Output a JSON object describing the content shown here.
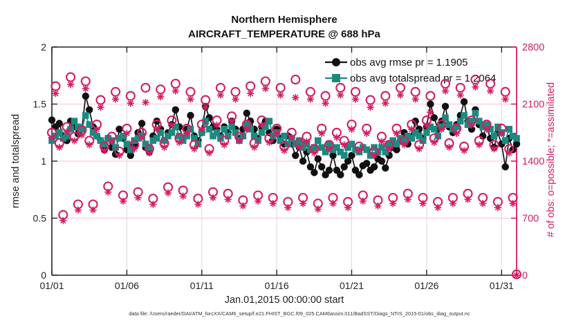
{
  "title": {
    "line1": "Northern Hemisphere",
    "line2": "AIRCRAFT_TEMPERATURE @ 688 hPa"
  },
  "xlabel": "Jan.01,2015 00:00:00 start",
  "ylabel_left": "rmse and totalspread",
  "ylabel_right": "# of obs: o=possible; *=assimilated",
  "caption": "data file: /Users/raeder/DAI/ATM_forcXX/CAM6_setup/f.e21.FHIST_BGC.f09_025.CAM6assim.011/BadSST/Diags_NTrS_2015-01/obs_diag_output.nc",
  "legend": [
    {
      "label": "obs avg rmse pr = 1.1905"
    },
    {
      "label": "obs avg totalspread pr = 1.2064"
    }
  ],
  "colors": {
    "rmse": "#111111",
    "totalspread": "#1b8a80",
    "counts": "#d21e64",
    "grid_h": "#f4cfdc",
    "grid_v": "#d9d9d9",
    "axis": "#222222"
  },
  "chart_data": {
    "type": "line",
    "title": "Northern Hemisphere AIRCRAFT_TEMPERATURE @ 688 hPa",
    "x_axis": {
      "start": "01/01",
      "end": "02/01",
      "points_per_day": 4,
      "tick_labels": [
        "01/01",
        "01/06",
        "01/11",
        "01/16",
        "01/21",
        "01/26",
        "01/31"
      ]
    },
    "y_left": {
      "label": "rmse and totalspread",
      "range": [
        0,
        2
      ],
      "ticks": [
        0,
        0.5,
        1,
        1.5,
        2
      ],
      "tick_labels": [
        "0",
        "0.5",
        "1",
        "1.5",
        "2"
      ]
    },
    "y_right": {
      "label": "# of obs: o=possible; *=assimilated",
      "range": [
        0,
        2800
      ],
      "ticks": [
        0,
        700,
        1400,
        2100,
        2800
      ],
      "tick_labels": [
        "0",
        "700",
        "1400",
        "2100",
        "2800"
      ]
    },
    "grid": true,
    "legend_position": "top-right-inside",
    "series": [
      {
        "name": "obs avg rmse pr = 1.1905",
        "axis": "left",
        "style": "line+filled-circle",
        "values": [
          1.36,
          1.3,
          1.33,
          1.22,
          1.18,
          1.35,
          1.3,
          1.24,
          1.28,
          1.57,
          1.45,
          1.3,
          1.22,
          1.18,
          1.1,
          1.2,
          1.12,
          1.06,
          1.28,
          1.2,
          1.1,
          1.05,
          1.14,
          1.25,
          1.33,
          1.12,
          1.08,
          1.22,
          1.35,
          1.28,
          1.18,
          1.25,
          1.32,
          1.45,
          1.3,
          1.2,
          1.28,
          1.4,
          1.22,
          1.18,
          1.25,
          1.48,
          1.38,
          1.3,
          1.28,
          1.22,
          1.3,
          1.25,
          1.35,
          1.28,
          1.2,
          1.28,
          1.42,
          1.35,
          1.28,
          1.2,
          1.3,
          1.35,
          1.25,
          1.18,
          1.28,
          1.2,
          1.15,
          1.22,
          1.15,
          1.05,
          1.12,
          1.0,
          1.08,
          0.95,
          0.9,
          1.02,
          0.95,
          0.88,
          0.92,
          1.05,
          0.92,
          0.88,
          0.95,
          1.0,
          1.05,
          0.92,
          0.88,
          0.96,
          0.98,
          0.92,
          0.95,
          1.02,
          1.0,
          0.94,
          1.05,
          1.12,
          1.1,
          1.18,
          1.25,
          1.15,
          1.22,
          1.35,
          1.28,
          1.2,
          1.3,
          1.5,
          1.38,
          1.28,
          1.35,
          1.48,
          1.3,
          1.25,
          1.32,
          1.4,
          1.52,
          1.35,
          1.28,
          1.45,
          1.32,
          1.22,
          1.3,
          1.2,
          1.12,
          1.25,
          1.15,
          0.95,
          1.2,
          1.1,
          1.15
        ]
      },
      {
        "name": "obs avg totalspread pr = 1.2064",
        "axis": "left",
        "style": "line+filled-square",
        "values": [
          1.18,
          1.22,
          1.25,
          1.2,
          1.22,
          1.28,
          1.35,
          1.3,
          1.28,
          1.4,
          1.32,
          1.25,
          1.22,
          1.18,
          1.15,
          1.2,
          1.18,
          1.12,
          1.2,
          1.22,
          1.15,
          1.1,
          1.18,
          1.2,
          1.22,
          1.15,
          1.12,
          1.18,
          1.2,
          1.25,
          1.18,
          1.22,
          1.25,
          1.3,
          1.22,
          1.18,
          1.22,
          1.28,
          1.2,
          1.15,
          1.25,
          1.35,
          1.28,
          1.22,
          1.25,
          1.2,
          1.28,
          1.22,
          1.3,
          1.25,
          1.18,
          1.22,
          1.32,
          1.28,
          1.22,
          1.18,
          1.25,
          1.3,
          1.35,
          1.22,
          1.25,
          1.18,
          1.22,
          1.15,
          1.2,
          1.15,
          1.18,
          1.12,
          1.15,
          1.1,
          1.12,
          1.18,
          1.12,
          1.08,
          1.15,
          1.1,
          1.12,
          1.08,
          1.05,
          1.12,
          1.15,
          1.1,
          1.08,
          1.12,
          1.1,
          1.05,
          1.12,
          1.08,
          1.12,
          1.08,
          1.15,
          1.18,
          1.15,
          1.2,
          1.18,
          1.22,
          1.2,
          1.25,
          1.22,
          1.18,
          1.25,
          1.3,
          1.28,
          1.22,
          1.3,
          1.38,
          1.32,
          1.28,
          1.3,
          1.35,
          1.4,
          1.32,
          1.35,
          1.42,
          1.35,
          1.3,
          1.32,
          1.28,
          1.22,
          1.3,
          1.25,
          1.18,
          1.28,
          1.22,
          1.2
        ]
      },
      {
        "name": "# of obs possible (o)",
        "axis": "right",
        "style": "open-circle",
        "values": [
          1750,
          2320,
          1620,
          740,
          1820,
          2430,
          1700,
          870,
          1780,
          2380,
          1650,
          870,
          1850,
          2150,
          1580,
          1090,
          1700,
          2250,
          1520,
          980,
          1800,
          2200,
          1600,
          1020,
          1750,
          2300,
          1550,
          940,
          1850,
          2280,
          1620,
          1080,
          1900,
          2350,
          1680,
          1040,
          1800,
          2250,
          1600,
          940,
          1850,
          2150,
          1550,
          1020,
          1900,
          2300,
          1650,
          1000,
          1950,
          2250,
          1700,
          920,
          1850,
          2320,
          1620,
          980,
          1900,
          2380,
          1680,
          950,
          1800,
          2300,
          1580,
          900,
          1750,
          2400,
          1620,
          950,
          1700,
          2250,
          1550,
          880,
          1800,
          2200,
          1600,
          950,
          1750,
          2300,
          1650,
          900,
          1850,
          2250,
          1580,
          980,
          1800,
          2150,
          1520,
          920,
          1700,
          2200,
          1600,
          950,
          1800,
          2300,
          1650,
          1000,
          1850,
          2250,
          1600,
          950,
          1900,
          2200,
          1680,
          900,
          1850,
          2350,
          1620,
          950,
          1800,
          2300,
          1580,
          1000,
          1900,
          2400,
          1650,
          950,
          1850,
          2350,
          1600,
          900,
          1800,
          2250,
          1550,
          950,
          10
        ]
      },
      {
        "name": "# of obs assimilated (*)",
        "axis": "right",
        "style": "asterisk",
        "values": [
          1690,
          2230,
          1570,
          670,
          1760,
          2340,
          1650,
          800,
          1720,
          2290,
          1600,
          800,
          1790,
          2060,
          1530,
          1020,
          1640,
          2160,
          1470,
          910,
          1740,
          2110,
          1550,
          950,
          1690,
          2120,
          1500,
          870,
          1790,
          2190,
          1570,
          1010,
          1840,
          2260,
          1630,
          970,
          1740,
          2160,
          1550,
          870,
          1790,
          2060,
          1500,
          950,
          1840,
          2210,
          1600,
          930,
          1890,
          2160,
          1650,
          850,
          1790,
          2230,
          1570,
          910,
          1840,
          2290,
          1630,
          880,
          1740,
          2210,
          1530,
          830,
          1690,
          2180,
          1570,
          880,
          1640,
          2160,
          1500,
          810,
          1740,
          2110,
          1550,
          880,
          1690,
          2210,
          1600,
          830,
          1790,
          2160,
          1530,
          910,
          1740,
          2060,
          1470,
          850,
          1640,
          2110,
          1550,
          880,
          1740,
          2210,
          1600,
          930,
          1790,
          2160,
          1550,
          880,
          1840,
          2000,
          1630,
          830,
          1790,
          2260,
          1570,
          880,
          1740,
          2210,
          1530,
          930,
          1840,
          2310,
          1600,
          880,
          1790,
          2260,
          1550,
          830,
          1740,
          2160,
          1500,
          880,
          0
        ]
      }
    ]
  }
}
